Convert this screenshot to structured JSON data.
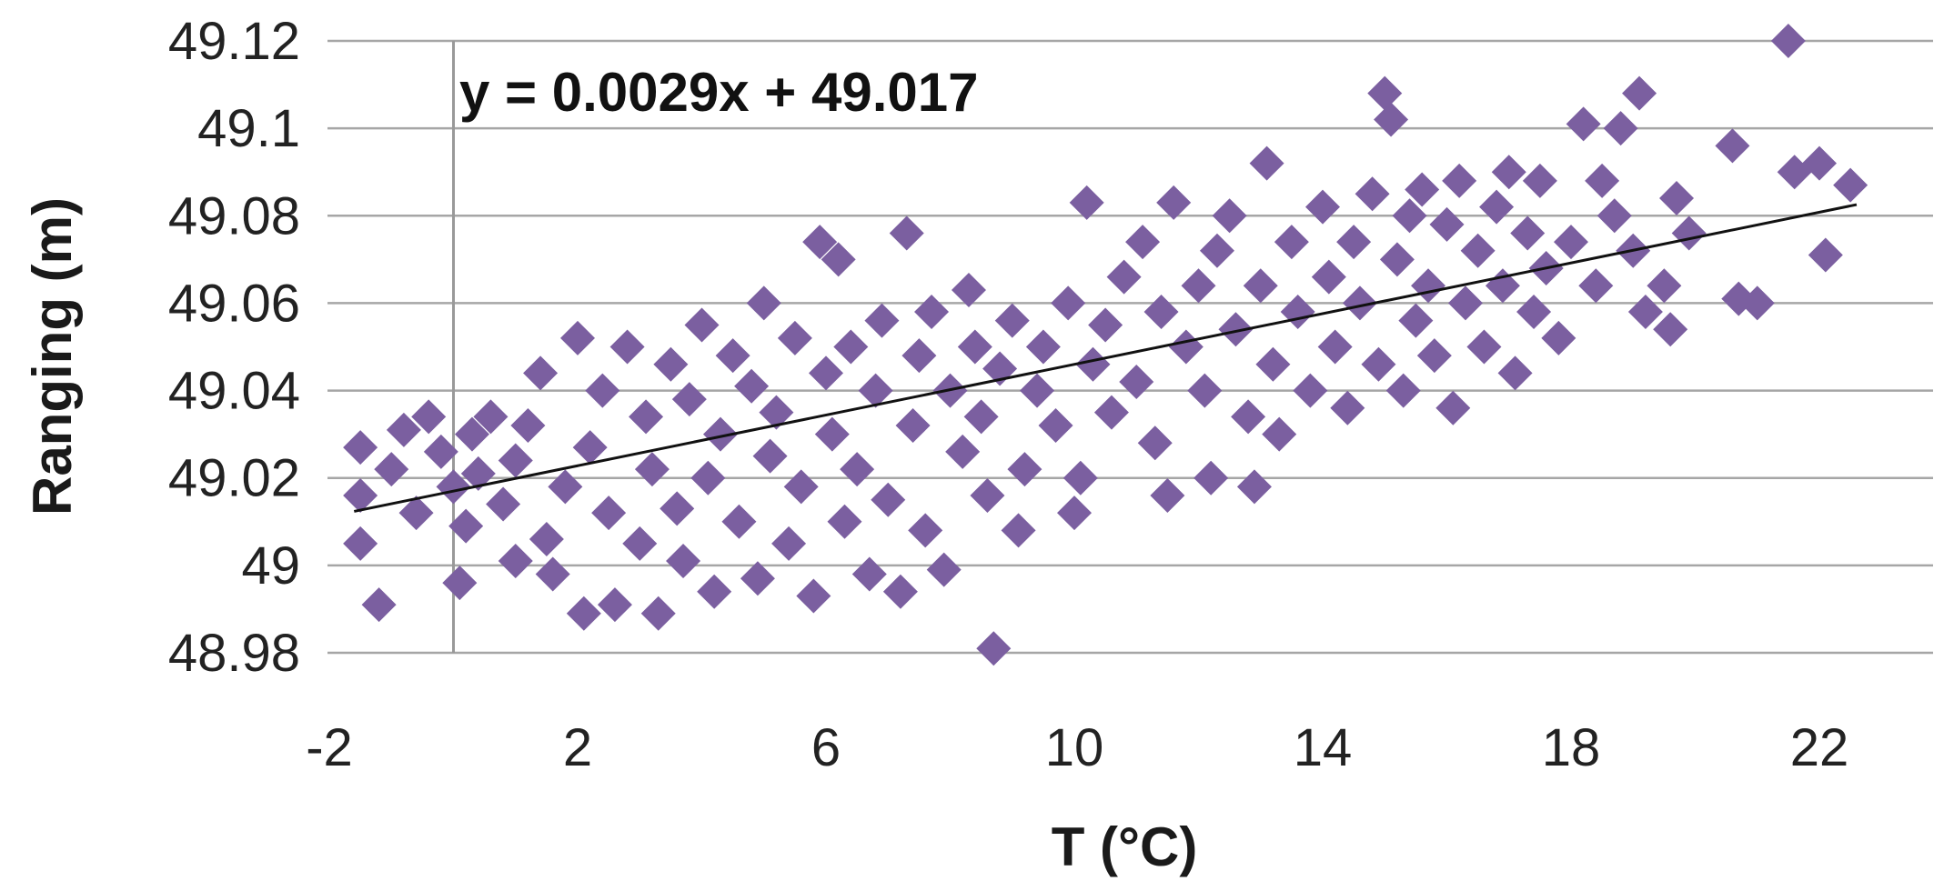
{
  "chart_data": {
    "type": "scatter",
    "title": "",
    "xlabel": "T (°C)",
    "ylabel": "Ranging (m)",
    "xlim": [
      -2,
      24
    ],
    "ylim": [
      48.97,
      49.125
    ],
    "xticks": [
      -2,
      2,
      6,
      10,
      14,
      18,
      22
    ],
    "xtick_labels": [
      "-2",
      "2",
      "6",
      "10",
      "14",
      "18",
      "22"
    ],
    "yticks": [
      48.98,
      49.0,
      49.02,
      49.04,
      49.06,
      49.08,
      49.1,
      49.12
    ],
    "ytick_labels": [
      "48.98",
      "49",
      "49.02",
      "49.04",
      "49.06",
      "49.08",
      "49.1",
      "49.12"
    ],
    "grid": "horizontal",
    "legend": "none",
    "marker": "diamond",
    "color": "#7b5fa0",
    "trendline": {
      "slope": 0.0029,
      "intercept": 49.017,
      "x_range": [
        -1.6,
        22.6
      ],
      "equation": "y = 0.0029x + 49.017",
      "color": "#111111"
    },
    "points": [
      [
        -1.5,
        49.027
      ],
      [
        -1.5,
        49.016
      ],
      [
        -1.5,
        49.005
      ],
      [
        -1.2,
        48.991
      ],
      [
        -1.0,
        49.022
      ],
      [
        -0.8,
        49.031
      ],
      [
        -0.6,
        49.012
      ],
      [
        -0.4,
        49.034
      ],
      [
        -0.2,
        49.026
      ],
      [
        0.0,
        49.018
      ],
      [
        0.1,
        48.996
      ],
      [
        0.2,
        49.009
      ],
      [
        0.3,
        49.03
      ],
      [
        0.4,
        49.021
      ],
      [
        0.6,
        49.034
      ],
      [
        0.8,
        49.014
      ],
      [
        1.0,
        49.024
      ],
      [
        1.0,
        49.001
      ],
      [
        1.2,
        49.032
      ],
      [
        1.4,
        49.044
      ],
      [
        1.5,
        49.006
      ],
      [
        1.6,
        48.998
      ],
      [
        1.8,
        49.018
      ],
      [
        2.0,
        49.052
      ],
      [
        2.1,
        48.989
      ],
      [
        2.2,
        49.027
      ],
      [
        2.4,
        49.04
      ],
      [
        2.5,
        49.012
      ],
      [
        2.6,
        48.991
      ],
      [
        2.8,
        49.05
      ],
      [
        3.0,
        49.005
      ],
      [
        3.1,
        49.034
      ],
      [
        3.2,
        49.022
      ],
      [
        3.3,
        48.989
      ],
      [
        3.5,
        49.046
      ],
      [
        3.6,
        49.013
      ],
      [
        3.7,
        49.001
      ],
      [
        3.8,
        49.038
      ],
      [
        4.0,
        49.055
      ],
      [
        4.1,
        49.02
      ],
      [
        4.2,
        48.994
      ],
      [
        4.3,
        49.03
      ],
      [
        4.5,
        49.048
      ],
      [
        4.6,
        49.01
      ],
      [
        4.8,
        49.041
      ],
      [
        4.9,
        48.997
      ],
      [
        5.0,
        49.06
      ],
      [
        5.1,
        49.025
      ],
      [
        5.2,
        49.035
      ],
      [
        5.4,
        49.005
      ],
      [
        5.5,
        49.052
      ],
      [
        5.6,
        49.018
      ],
      [
        5.8,
        48.993
      ],
      [
        5.9,
        49.074
      ],
      [
        6.0,
        49.044
      ],
      [
        6.1,
        49.03
      ],
      [
        6.2,
        49.07
      ],
      [
        6.3,
        49.01
      ],
      [
        6.4,
        49.05
      ],
      [
        6.5,
        49.022
      ],
      [
        6.7,
        48.998
      ],
      [
        6.8,
        49.04
      ],
      [
        6.9,
        49.056
      ],
      [
        7.0,
        49.015
      ],
      [
        7.2,
        48.994
      ],
      [
        7.3,
        49.076
      ],
      [
        7.4,
        49.032
      ],
      [
        7.5,
        49.048
      ],
      [
        7.6,
        49.008
      ],
      [
        7.7,
        49.058
      ],
      [
        7.9,
        48.999
      ],
      [
        8.0,
        49.04
      ],
      [
        8.2,
        49.026
      ],
      [
        8.3,
        49.063
      ],
      [
        8.4,
        49.05
      ],
      [
        8.5,
        49.034
      ],
      [
        8.6,
        49.016
      ],
      [
        8.7,
        48.981
      ],
      [
        8.8,
        49.045
      ],
      [
        9.0,
        49.056
      ],
      [
        9.1,
        49.008
      ],
      [
        9.2,
        49.022
      ],
      [
        9.4,
        49.04
      ],
      [
        9.5,
        49.05
      ],
      [
        9.7,
        49.032
      ],
      [
        9.9,
        49.06
      ],
      [
        10.0,
        49.012
      ],
      [
        10.1,
        49.02
      ],
      [
        10.2,
        49.083
      ],
      [
        10.3,
        49.046
      ],
      [
        10.5,
        49.055
      ],
      [
        10.6,
        49.035
      ],
      [
        10.8,
        49.066
      ],
      [
        11.0,
        49.042
      ],
      [
        11.1,
        49.074
      ],
      [
        11.3,
        49.028
      ],
      [
        11.4,
        49.058
      ],
      [
        11.5,
        49.016
      ],
      [
        11.6,
        49.083
      ],
      [
        11.8,
        49.05
      ],
      [
        12.0,
        49.064
      ],
      [
        12.1,
        49.04
      ],
      [
        12.2,
        49.02
      ],
      [
        12.3,
        49.072
      ],
      [
        12.5,
        49.08
      ],
      [
        12.6,
        49.054
      ],
      [
        12.8,
        49.034
      ],
      [
        12.9,
        49.018
      ],
      [
        13.0,
        49.064
      ],
      [
        13.1,
        49.092
      ],
      [
        13.2,
        49.046
      ],
      [
        13.3,
        49.03
      ],
      [
        13.5,
        49.074
      ],
      [
        13.6,
        49.058
      ],
      [
        13.8,
        49.04
      ],
      [
        14.0,
        49.082
      ],
      [
        14.1,
        49.066
      ],
      [
        14.2,
        49.05
      ],
      [
        14.4,
        49.036
      ],
      [
        14.5,
        49.074
      ],
      [
        14.6,
        49.06
      ],
      [
        14.8,
        49.085
      ],
      [
        14.9,
        49.046
      ],
      [
        15.0,
        49.108
      ],
      [
        15.1,
        49.102
      ],
      [
        15.2,
        49.07
      ],
      [
        15.3,
        49.04
      ],
      [
        15.4,
        49.08
      ],
      [
        15.5,
        49.056
      ],
      [
        15.6,
        49.086
      ],
      [
        15.7,
        49.064
      ],
      [
        15.8,
        49.048
      ],
      [
        16.0,
        49.078
      ],
      [
        16.1,
        49.036
      ],
      [
        16.2,
        49.088
      ],
      [
        16.3,
        49.06
      ],
      [
        16.5,
        49.072
      ],
      [
        16.6,
        49.05
      ],
      [
        16.8,
        49.082
      ],
      [
        16.9,
        49.064
      ],
      [
        17.0,
        49.09
      ],
      [
        17.1,
        49.044
      ],
      [
        17.3,
        49.076
      ],
      [
        17.4,
        49.058
      ],
      [
        17.5,
        49.088
      ],
      [
        17.6,
        49.068
      ],
      [
        17.8,
        49.052
      ],
      [
        18.0,
        49.074
      ],
      [
        18.2,
        49.101
      ],
      [
        18.4,
        49.064
      ],
      [
        18.5,
        49.088
      ],
      [
        18.7,
        49.08
      ],
      [
        18.8,
        49.1
      ],
      [
        19.0,
        49.072
      ],
      [
        19.1,
        49.108
      ],
      [
        19.2,
        49.058
      ],
      [
        19.5,
        49.064
      ],
      [
        19.6,
        49.054
      ],
      [
        19.7,
        49.084
      ],
      [
        19.9,
        49.076
      ],
      [
        20.6,
        49.096
      ],
      [
        20.7,
        49.061
      ],
      [
        21.0,
        49.06
      ],
      [
        21.5,
        49.12
      ],
      [
        21.6,
        49.09
      ],
      [
        22.0,
        49.092
      ],
      [
        22.1,
        49.071
      ],
      [
        22.5,
        49.087
      ]
    ]
  }
}
